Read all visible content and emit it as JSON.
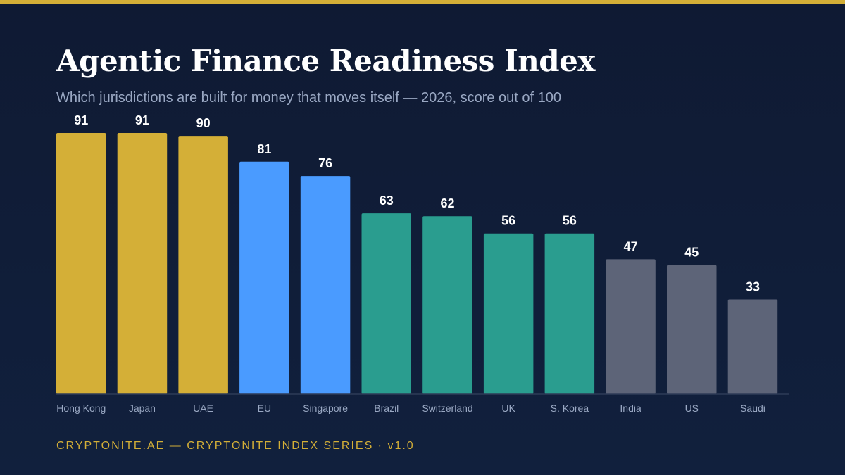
{
  "header": {
    "title": "Agentic Finance Readiness Index",
    "subtitle": "Which jurisdictions are built for money that moves itself — 2026, score out of 100"
  },
  "footer": {
    "text": "CRYPTONITE.AE — CRYPTONITE INDEX SERIES · v1.0"
  },
  "colors": {
    "accent": "#d4af37",
    "tier1": "#d4af37",
    "tier2": "#4a9bff",
    "tier3": "#2a9d8f",
    "tier4": "#5d6478"
  },
  "chart_data": {
    "type": "bar",
    "title": "Agentic Finance Readiness Index",
    "xlabel": "",
    "ylabel": "",
    "ylim": [
      0,
      100
    ],
    "grid": false,
    "categories": [
      "Hong Kong",
      "Japan",
      "UAE",
      "EU",
      "Singapore",
      "Brazil",
      "Switzerland",
      "UK",
      "S. Korea",
      "India",
      "US",
      "Saudi"
    ],
    "values": [
      91,
      91,
      90,
      81,
      76,
      63,
      62,
      56,
      56,
      47,
      45,
      33
    ],
    "bar_colors": [
      "#d4af37",
      "#d4af37",
      "#d4af37",
      "#4a9bff",
      "#4a9bff",
      "#2a9d8f",
      "#2a9d8f",
      "#2a9d8f",
      "#2a9d8f",
      "#5d6478",
      "#5d6478",
      "#5d6478"
    ]
  }
}
